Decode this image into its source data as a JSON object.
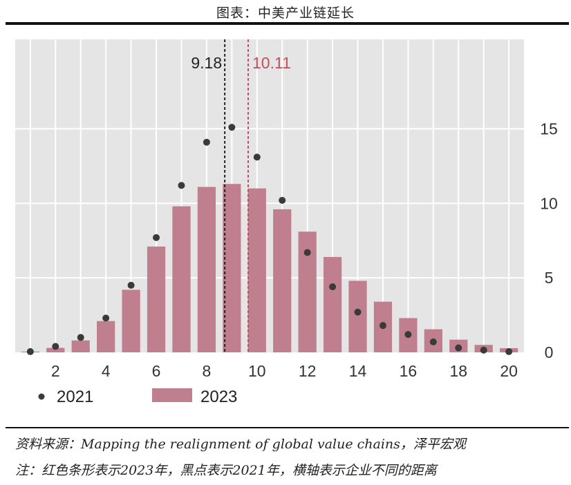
{
  "header": {
    "title": "图表：中美产业链延长"
  },
  "chart_data": {
    "type": "bar",
    "title": "图表：中美产业链延长",
    "xlabel": "",
    "ylabel": "",
    "x": [
      1,
      2,
      3,
      4,
      5,
      6,
      7,
      8,
      9,
      10,
      11,
      12,
      13,
      14,
      15,
      16,
      17,
      18,
      19,
      20
    ],
    "xticks": [
      2,
      4,
      6,
      8,
      10,
      12,
      14,
      16,
      18,
      20
    ],
    "yticks": [
      0,
      5,
      10,
      15
    ],
    "ylim": [
      0,
      21
    ],
    "xlim": [
      0.4,
      20.6
    ],
    "grid": true,
    "legend_position": "bottom-left",
    "series": [
      {
        "name": "2023",
        "type": "bar",
        "color": "#c07f8f",
        "values": [
          0.05,
          0.3,
          0.8,
          2.1,
          4.2,
          7.1,
          9.8,
          11.1,
          11.3,
          11.0,
          9.6,
          8.1,
          6.4,
          4.8,
          3.4,
          2.3,
          1.55,
          0.85,
          0.5,
          0.28
        ]
      },
      {
        "name": "2021",
        "type": "scatter",
        "color": "#3a3a3a",
        "values": [
          0.05,
          0.4,
          1.0,
          2.3,
          4.5,
          7.7,
          11.2,
          14.1,
          15.1,
          13.1,
          10.2,
          6.7,
          4.4,
          2.7,
          1.8,
          1.2,
          0.7,
          0.3,
          0.15,
          0.05
        ]
      }
    ],
    "annotations": [
      {
        "x": 8.72,
        "label": "9.18",
        "color": "#222222"
      },
      {
        "x": 9.65,
        "label": "10.11",
        "color": "#c0505a"
      }
    ],
    "legend": [
      {
        "label": "2021",
        "marker": "dot"
      },
      {
        "label": "2023",
        "marker": "bar"
      }
    ]
  },
  "footer": {
    "source": "资料来源：Mapping the realignment of global value chains，泽平宏观",
    "note": "注：红色条形表示2023年，黑点表示2021年，横轴表示企业不同的距离"
  }
}
